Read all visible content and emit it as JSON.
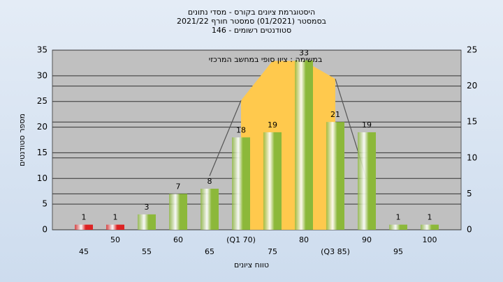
{
  "chart_data": {
    "type": "bar",
    "title": [
      "היסטוגרמת ציונים בקורס - מסדי נתונים",
      "בסמסטר  (01/2021)  סמסטר חורף 2021/22",
      "סטודנטים רשומים - 146"
    ],
    "annotation": "במשימה : ציון סופי במחשב המרכזי",
    "y_label": "מספר סטודנטים",
    "x_label": "טווח ציונים",
    "categories": [
      "45",
      "50",
      "55",
      "60",
      "65",
      "(Q1 70)",
      "75",
      "80",
      "(Q3 85)",
      "90",
      "95",
      "100"
    ],
    "series": [
      {
        "colors": [
          "#d22",
          "#d22",
          "#8cb83a",
          "#8cb83a",
          "#8cb83a",
          "#8cb83a",
          "#8cb83a",
          "#8cb83a",
          "#8cb83a",
          "#8cb83a",
          "#8cb83a",
          "#8cb83a"
        ],
        "values": [
          1,
          1,
          3,
          7,
          8,
          18,
          19,
          33,
          21,
          19,
          1,
          1
        ]
      },
      {
        "type": "area",
        "axis": "y2",
        "color": "#ffc94d",
        "values": [
          null,
          null,
          null,
          null,
          null,
          18,
          23.5,
          23.5,
          21,
          null,
          null,
          null
        ]
      },
      {
        "type": "line",
        "axis": "y2",
        "color": "#555555",
        "values": [
          null,
          null,
          null,
          null,
          7.5,
          18,
          null,
          null,
          21,
          7,
          null,
          null
        ]
      }
    ],
    "ylim": [
      0,
      35
    ],
    "yticks": [
      0,
      5,
      10,
      15,
      20,
      25,
      30,
      35
    ],
    "y2lim": [
      0,
      25
    ],
    "y2ticks": [
      0,
      5,
      10,
      15,
      20,
      25
    ],
    "grid": true
  }
}
